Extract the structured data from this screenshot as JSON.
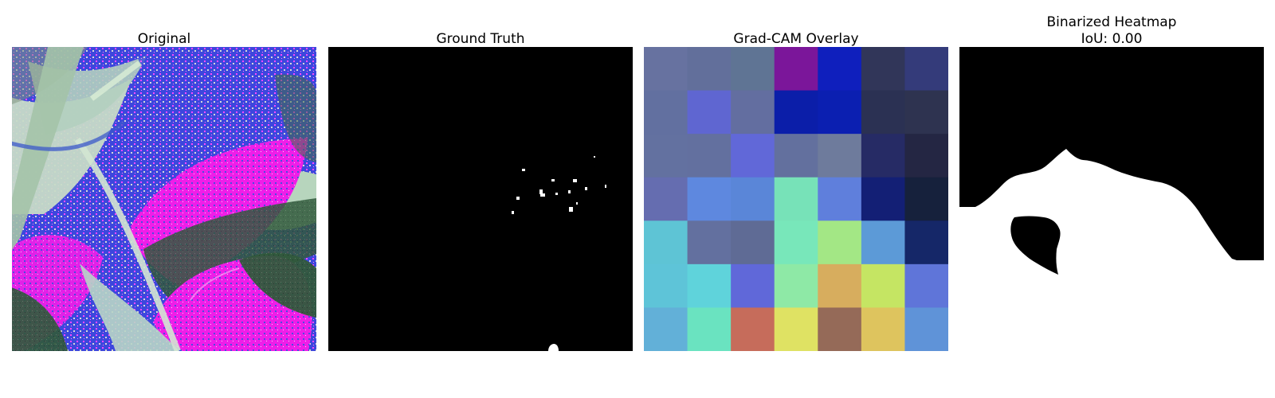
{
  "figure": {
    "panels": [
      {
        "title": "Original"
      },
      {
        "title": "Ground Truth"
      },
      {
        "title": "Grad-CAM Overlay"
      },
      {
        "title": "Binarized Heatmap\nIoU: 0.00"
      }
    ],
    "heatmap_grid": [
      [
        "#6772a0",
        "#626f9b",
        "#5f7494",
        "#7b169a",
        "#0f1fbd",
        "#313659",
        "#343b7a"
      ],
      [
        "#6270a0",
        "#5f66d1",
        "#636ea0",
        "#0b1ea9",
        "#0b1fb1",
        "#2b3153",
        "#2e3350"
      ],
      [
        "#6371a0",
        "#63709f",
        "#6168d8",
        "#63709e",
        "#6e7b9c",
        "#262b65",
        "#242643"
      ],
      [
        "#656db0",
        "#5e88df",
        "#5a86d8",
        "#77e2b8",
        "#5f7fdc",
        "#131f75",
        "#16213c"
      ],
      [
        "#5ec4d5",
        "#63709f",
        "#5f6b95",
        "#78e7ba",
        "#a3e785",
        "#5c9ad7",
        "#152768"
      ],
      [
        "#5ec4d8",
        "#5fd3db",
        "#6068d9",
        "#8ee9a6",
        "#d7ad5e",
        "#c5e563",
        "#5f75d9"
      ],
      [
        "#62b0d8",
        "#6ae3c0",
        "#c66c5b",
        "#dfe263",
        "#956a58",
        "#dec45e",
        "#5f93d8"
      ]
    ]
  }
}
